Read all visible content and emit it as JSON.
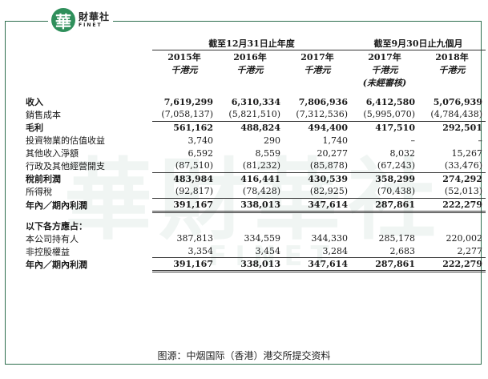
{
  "logo": {
    "mark": "華",
    "cn": "財華社",
    "en": "FINET"
  },
  "watermark": {
    "cn": "華財華社",
    "en": "FINET"
  },
  "header": {
    "group1": "截至12月31日止年度",
    "group2": "截至9月30日止九個月",
    "years": [
      "2015年",
      "2016年",
      "2017年",
      "2017年",
      "2018年"
    ],
    "units": [
      "千港元",
      "千港元",
      "千港元",
      "千港元",
      "千港元"
    ],
    "note": "(未經審核)"
  },
  "rows": [
    {
      "label": "收入",
      "v": [
        "7,619,299",
        "6,310,334",
        "7,806,936",
        "6,412,580",
        "5,076,939"
      ]
    },
    {
      "label": "銷售成本",
      "v": [
        "(7,058,137)",
        "(5,821,510)",
        "(7,312,536)",
        "(5,995,070)",
        "(4,784,438)"
      ]
    },
    {
      "label": "毛利",
      "v": [
        "561,162",
        "488,824",
        "494,400",
        "417,510",
        "292,501"
      ]
    },
    {
      "label": "投資物業的估值收益",
      "v": [
        "3,740",
        "290",
        "1,740",
        "–",
        "–"
      ]
    },
    {
      "label": "其他收入淨額",
      "v": [
        "6,592",
        "8,559",
        "20,277",
        "8,032",
        "15,267"
      ]
    },
    {
      "label": "行政及其他經營開支",
      "v": [
        "(87,510)",
        "(81,232)",
        "(85,878)",
        "(67,243)",
        "(33,476)"
      ]
    },
    {
      "label": "稅前利潤",
      "v": [
        "483,984",
        "416,441",
        "430,539",
        "358,299",
        "274,292"
      ]
    },
    {
      "label": "所得稅",
      "v": [
        "(92,817)",
        "(78,428)",
        "(82,925)",
        "(70,438)",
        "(52,013)"
      ]
    },
    {
      "label": "年內／期內利潤",
      "v": [
        "391,167",
        "338,013",
        "347,614",
        "287,861",
        "222,279"
      ]
    },
    {
      "label": "以下各方應占：",
      "v": [
        "",
        "",
        "",
        "",
        ""
      ]
    },
    {
      "label": "本公司持有人",
      "v": [
        "387,813",
        "334,559",
        "344,330",
        "285,178",
        "220,002"
      ]
    },
    {
      "label": "非控股權益",
      "v": [
        "3,354",
        "3,454",
        "3,284",
        "2,683",
        "2,277"
      ]
    },
    {
      "label": "年內／期內利潤",
      "v": [
        "391,167",
        "338,013",
        "347,614",
        "287,861",
        "222,279"
      ]
    }
  ],
  "caption": "图源：中烟国际（香港）港交所提交资料"
}
